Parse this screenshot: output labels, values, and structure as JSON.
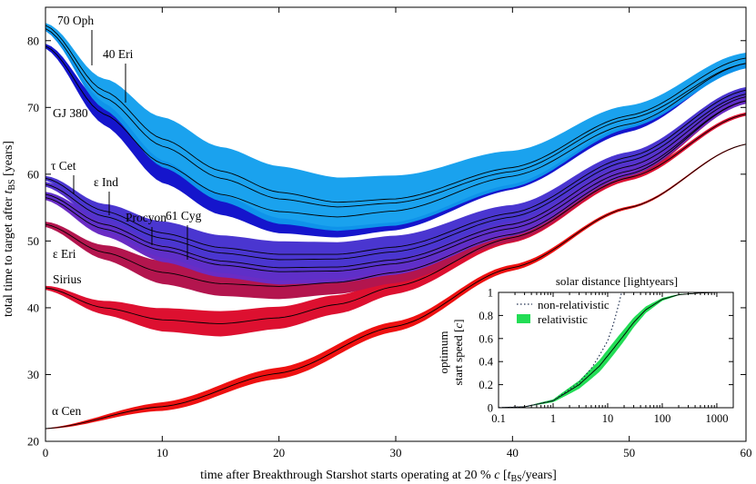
{
  "chart_data": {
    "type": "area",
    "main": {
      "xlabel_prefix": "time after Breakthrough Starshot starts operating at 20 % ",
      "xlabel_c": "c",
      "xlabel_open": " [",
      "xlabel_t": "t",
      "xlabel_sub": "BS",
      "xlabel_suffix": "/years]",
      "ylabel_prefix": "total time to target after ",
      "ylabel_t": "t",
      "ylabel_sub": "BS",
      "ylabel_suffix": " [years]",
      "xlim": [
        0,
        60
      ],
      "ylim": [
        20,
        85
      ],
      "xticks": [
        "0",
        "10",
        "20",
        "30",
        "40",
        "50",
        "60"
      ],
      "yticks": [
        "20",
        "30",
        "40",
        "50",
        "60",
        "70",
        "80"
      ],
      "series": [
        {
          "name": "α Cen",
          "color": "#ee1111",
          "center": [
            [
              0,
              21.9
            ],
            [
              10,
              25.2
            ],
            [
              20,
              30.2
            ],
            [
              30,
              37.2
            ],
            [
              40,
              46.0
            ],
            [
              50,
              55.0
            ],
            [
              60,
              64.5
            ]
          ],
          "width": [
            [
              0,
              0.1
            ],
            [
              10,
              1.3
            ],
            [
              20,
              1.7
            ],
            [
              30,
              1.5
            ],
            [
              40,
              0.9
            ],
            [
              50,
              0.4
            ],
            [
              60,
              0.15
            ]
          ]
        },
        {
          "name": "Sirius",
          "color": "#dd1030",
          "center": [
            [
              0,
              43.0
            ],
            [
              5,
              40.0
            ],
            [
              10,
              38.2
            ],
            [
              15,
              37.6
            ],
            [
              20,
              38.5
            ],
            [
              25,
              40.5
            ],
            [
              30,
              43.2
            ],
            [
              40,
              50.5
            ],
            [
              50,
              59.5
            ],
            [
              60,
              69.0
            ]
          ],
          "width": [
            [
              0,
              0.6
            ],
            [
              10,
              3.5
            ],
            [
              15,
              3.8
            ],
            [
              20,
              3.3
            ],
            [
              30,
              2.3
            ],
            [
              40,
              1.5
            ],
            [
              50,
              0.9
            ],
            [
              60,
              0.5
            ]
          ]
        },
        {
          "name": "ε Eri",
          "color": "#b3154e",
          "center": [
            [
              0,
              52.5
            ],
            [
              5,
              48.3
            ],
            [
              10,
              45.3
            ],
            [
              15,
              43.6
            ],
            [
              20,
              43.2
            ],
            [
              25,
              43.8
            ],
            [
              30,
              45.3
            ],
            [
              40,
              51.0
            ],
            [
              50,
              60.0
            ],
            [
              60,
              71.0
            ]
          ],
          "width": [
            [
              0,
              0.8
            ],
            [
              10,
              3.5
            ],
            [
              20,
              3.8
            ],
            [
              30,
              3.2
            ],
            [
              40,
              2.2
            ],
            [
              50,
              1.3
            ],
            [
              60,
              0.7
            ]
          ]
        },
        {
          "name": "61 Cyg",
          "color": "#6a2cc4",
          "center": [
            [
              0,
              56.5
            ],
            [
              5,
              51.8
            ],
            [
              10,
              48.6
            ],
            [
              15,
              46.4
            ],
            [
              20,
              45.4
            ],
            [
              25,
              45.5
            ],
            [
              30,
              46.6
            ],
            [
              40,
              51.9
            ],
            [
              50,
              60.5
            ],
            [
              60,
              71.0
            ]
          ],
          "width": [
            [
              0,
              0.7
            ],
            [
              10,
              3.5
            ],
            [
              20,
              3.8
            ],
            [
              30,
              3.3
            ],
            [
              40,
              2.3
            ],
            [
              50,
              1.5
            ],
            [
              60,
              0.9
            ]
          ]
        },
        {
          "name": "Procyon",
          "color": "#5f2fc8",
          "center": [
            [
              0,
              57.0
            ],
            [
              5,
              52.5
            ],
            [
              10,
              49.2
            ],
            [
              15,
              47.0
            ],
            [
              20,
              46.0
            ],
            [
              25,
              46.1
            ],
            [
              30,
              47.2
            ],
            [
              40,
              52.5
            ],
            [
              50,
              61.2
            ],
            [
              60,
              71.6
            ]
          ],
          "width": [
            [
              0,
              0.7
            ],
            [
              10,
              3.4
            ],
            [
              20,
              3.8
            ],
            [
              30,
              3.3
            ],
            [
              40,
              2.3
            ],
            [
              50,
              1.5
            ],
            [
              60,
              0.9
            ]
          ]
        },
        {
          "name": "ε Ind",
          "color": "#5533cc",
          "center": [
            [
              0,
              58.5
            ],
            [
              5,
              53.7
            ],
            [
              10,
              50.4
            ],
            [
              15,
              48.2
            ],
            [
              20,
              47.2
            ],
            [
              25,
              47.3
            ],
            [
              30,
              48.4
            ],
            [
              40,
              53.6
            ],
            [
              50,
              62.0
            ],
            [
              60,
              72.0
            ]
          ],
          "width": [
            [
              0,
              0.7
            ],
            [
              10,
              3.5
            ],
            [
              20,
              3.9
            ],
            [
              30,
              3.4
            ],
            [
              40,
              2.4
            ],
            [
              50,
              1.5
            ],
            [
              60,
              0.9
            ]
          ]
        },
        {
          "name": "τ Cet",
          "color": "#4a36d0",
          "center": [
            [
              0,
              59.4
            ],
            [
              5,
              54.5
            ],
            [
              10,
              51.2
            ],
            [
              15,
              49.0
            ],
            [
              20,
              48.0
            ],
            [
              25,
              48.0
            ],
            [
              30,
              49.1
            ],
            [
              40,
              54.2
            ],
            [
              50,
              62.6
            ],
            [
              60,
              72.6
            ]
          ],
          "width": [
            [
              0,
              0.7
            ],
            [
              10,
              3.5
            ],
            [
              20,
              3.9
            ],
            [
              30,
              3.4
            ],
            [
              40,
              2.4
            ],
            [
              50,
              1.5
            ],
            [
              60,
              0.9
            ]
          ]
        },
        {
          "name": "GJ 380",
          "color": "#1515cc",
          "center": [
            [
              0,
              79.2
            ],
            [
              5,
              69.0
            ],
            [
              10,
              61.6
            ],
            [
              15,
              57.0
            ],
            [
              20,
              54.4
            ],
            [
              25,
              53.6
            ],
            [
              30,
              54.5
            ],
            [
              40,
              59.7
            ],
            [
              50,
              67.5
            ],
            [
              60,
              76.6
            ]
          ],
          "width": [
            [
              0,
              0.7
            ],
            [
              10,
              5.8
            ],
            [
              20,
              6.5
            ],
            [
              30,
              5.8
            ],
            [
              40,
              4.0
            ],
            [
              50,
              2.3
            ],
            [
              60,
              0.9
            ]
          ]
        },
        {
          "name": "40 Eri",
          "color": "#0f93ea",
          "center": [
            [
              0,
              81.8
            ],
            [
              5,
              71.5
            ],
            [
              10,
              64.2
            ],
            [
              15,
              59.4
            ],
            [
              20,
              56.3
            ],
            [
              25,
              55.1
            ],
            [
              30,
              55.7
            ],
            [
              40,
              60.4
            ],
            [
              50,
              68.3
            ],
            [
              60,
              76.6
            ]
          ],
          "width": [
            [
              0,
              0.7
            ],
            [
              10,
              6.3
            ],
            [
              20,
              7.5
            ],
            [
              30,
              6.8
            ],
            [
              40,
              4.8
            ],
            [
              50,
              2.8
            ],
            [
              60,
              1.5
            ]
          ]
        },
        {
          "name": "70 Oph",
          "color": "#1aa2ee",
          "center": [
            [
              0,
              82.3
            ],
            [
              5,
              72.5
            ],
            [
              10,
              65.3
            ],
            [
              15,
              60.5
            ],
            [
              20,
              57.3
            ],
            [
              25,
              55.8
            ],
            [
              30,
              56.3
            ],
            [
              40,
              61.0
            ],
            [
              50,
              68.8
            ],
            [
              60,
              77.4
            ]
          ],
          "width": [
            [
              0,
              0.7
            ],
            [
              10,
              6.5
            ],
            [
              20,
              7.8
            ],
            [
              30,
              7.0
            ],
            [
              40,
              5.0
            ],
            [
              50,
              3.0
            ],
            [
              60,
              1.6
            ]
          ]
        }
      ]
    },
    "inset": {
      "type": "line",
      "title": "solar distance [lightyears]",
      "ylabel_line1": "optimum",
      "ylabel_line2_prefix": "start speed [",
      "ylabel_c": "c",
      "ylabel_line2_suffix": "]",
      "xscale": "log",
      "xlim": [
        0.1,
        2000
      ],
      "ylim": [
        0,
        1
      ],
      "xticks": [
        "0.1",
        "1",
        "10",
        "100",
        "1000"
      ],
      "yticks": [
        "0",
        "0.2",
        "0.4",
        "0.6",
        "0.8",
        "1"
      ],
      "legend": [
        {
          "label": "non-relativistic",
          "style": "dotted",
          "color": "#203050"
        },
        {
          "label": "relativistic",
          "style": "band",
          "color": "#22dd55"
        }
      ],
      "relativistic_center": [
        [
          0.1,
          0.001
        ],
        [
          0.3,
          0.008
        ],
        [
          1,
          0.06
        ],
        [
          3,
          0.2
        ],
        [
          7,
          0.36
        ],
        [
          10,
          0.45
        ],
        [
          20,
          0.63
        ],
        [
          30,
          0.74
        ],
        [
          50,
          0.85
        ],
        [
          100,
          0.94
        ],
        [
          200,
          0.98
        ],
        [
          500,
          0.995
        ],
        [
          1000,
          0.999
        ],
        [
          2000,
          1.0
        ]
      ],
      "non_relativistic": [
        [
          0.1,
          0.001
        ],
        [
          0.3,
          0.008
        ],
        [
          1,
          0.06
        ],
        [
          3,
          0.22
        ],
        [
          5,
          0.34
        ],
        [
          7,
          0.45
        ],
        [
          10,
          0.58
        ],
        [
          13,
          0.74
        ],
        [
          16,
          0.9
        ],
        [
          18,
          1.0
        ]
      ]
    }
  }
}
